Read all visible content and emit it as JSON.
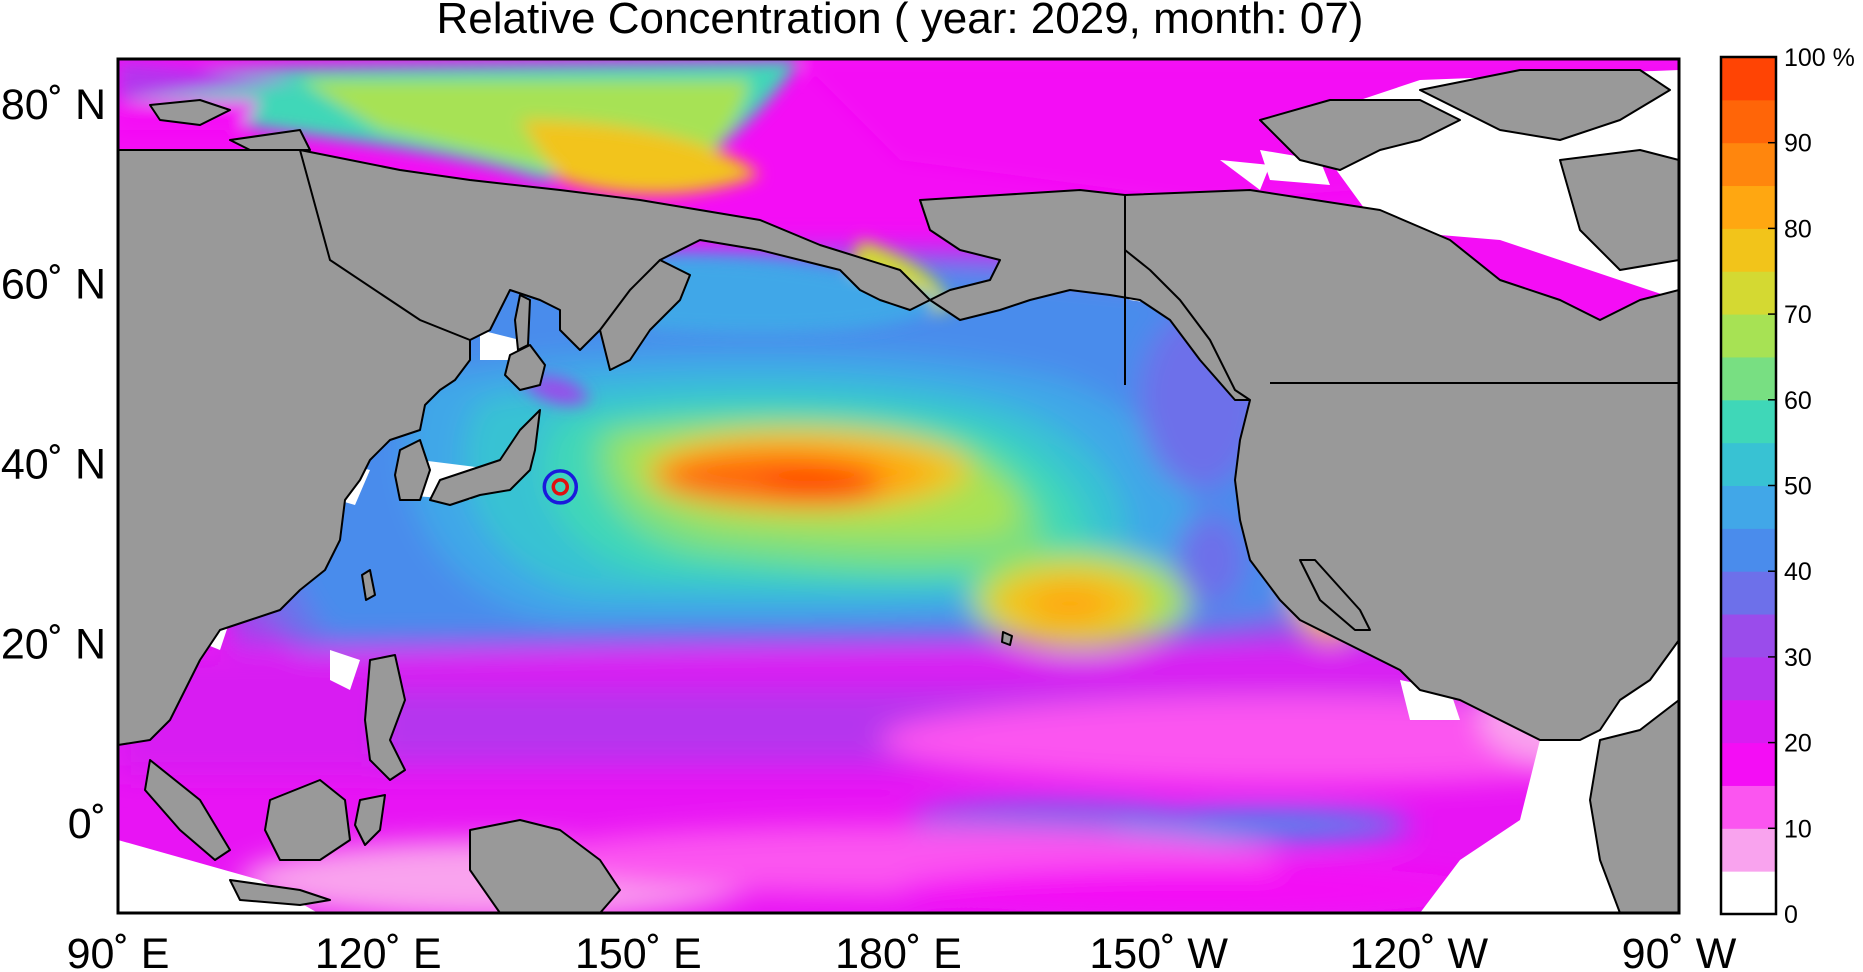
{
  "title": "Relative Concentration ( year: 2029, month: 07)",
  "map": {
    "lon_range": [
      90,
      270
    ],
    "lat_range": [
      -10,
      85
    ],
    "x_ticks": [
      {
        "lon": 90,
        "label": "90˚ E"
      },
      {
        "lon": 120,
        "label": "120˚ E"
      },
      {
        "lon": 150,
        "label": "150˚ E"
      },
      {
        "lon": 180,
        "label": "180˚ E"
      },
      {
        "lon": 210,
        "label": "150˚ W"
      },
      {
        "lon": 240,
        "label": "120˚ W"
      },
      {
        "lon": 270,
        "label": "90˚ W"
      }
    ],
    "y_ticks": [
      {
        "lat": 80,
        "label": "80˚ N"
      },
      {
        "lat": 60,
        "label": "60˚ N"
      },
      {
        "lat": 40,
        "label": "40˚ N"
      },
      {
        "lat": 20,
        "label": "20˚ N"
      },
      {
        "lat": 0,
        "label": "0˚"
      }
    ],
    "source_marker": {
      "lon": 141,
      "lat": 37.4,
      "outer_color": "#1a1adc",
      "inner_color": "#e01010"
    },
    "land_color": "#999999",
    "no_data_color": "#ffffff"
  },
  "colorbar": {
    "levels": [
      {
        "value": 0,
        "color": "#ffffff"
      },
      {
        "value": 5,
        "color": "#f9a3ee"
      },
      {
        "value": 10,
        "color": "#fb55f0"
      },
      {
        "value": 15,
        "color": "#f40df5"
      },
      {
        "value": 20,
        "color": "#d81cf2"
      },
      {
        "value": 25,
        "color": "#b535ee"
      },
      {
        "value": 30,
        "color": "#9a4ceb"
      },
      {
        "value": 35,
        "color": "#6d70ea"
      },
      {
        "value": 40,
        "color": "#4a8cec"
      },
      {
        "value": 45,
        "color": "#41a7e8"
      },
      {
        "value": 50,
        "color": "#38c2d3"
      },
      {
        "value": 55,
        "color": "#3fd7b8"
      },
      {
        "value": 60,
        "color": "#78df82"
      },
      {
        "value": 65,
        "color": "#a7e254"
      },
      {
        "value": 70,
        "color": "#d4d932"
      },
      {
        "value": 75,
        "color": "#f2c41a"
      },
      {
        "value": 80,
        "color": "#ffa711"
      },
      {
        "value": 85,
        "color": "#ff860d"
      },
      {
        "value": 90,
        "color": "#ff6508"
      },
      {
        "value": 95,
        "color": "#ff4404"
      }
    ],
    "tick_labels": [
      {
        "value": 0,
        "label": "0"
      },
      {
        "value": 10,
        "label": "10"
      },
      {
        "value": 20,
        "label": "20"
      },
      {
        "value": 30,
        "label": "30"
      },
      {
        "value": 40,
        "label": "40"
      },
      {
        "value": 50,
        "label": "50"
      },
      {
        "value": 60,
        "label": "60"
      },
      {
        "value": 70,
        "label": "70"
      },
      {
        "value": 80,
        "label": "80"
      },
      {
        "value": 90,
        "label": "90"
      },
      {
        "value": 100,
        "label": "100 %"
      }
    ]
  }
}
